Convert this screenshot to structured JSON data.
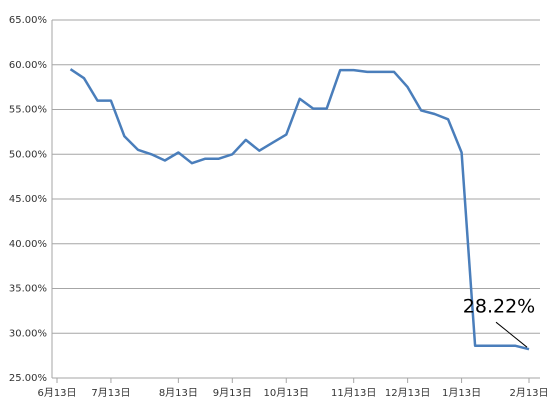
{
  "chart_data": {
    "type": "line",
    "categories": [
      "6月13日",
      null,
      null,
      null,
      "7月13日",
      null,
      null,
      null,
      null,
      "8月13日",
      null,
      null,
      null,
      "9月13日",
      null,
      null,
      null,
      "10月13日",
      null,
      null,
      null,
      null,
      "11月13日",
      null,
      null,
      null,
      "12月13日",
      null,
      null,
      null,
      "1月13日",
      null,
      null,
      null,
      null,
      "2月13日"
    ],
    "series": [
      {
        "color": "#4a7ebb",
        "values": [
          null,
          59.5,
          58.5,
          56.0,
          56.0,
          52.0,
          50.5,
          50.0,
          49.3,
          50.2,
          49.0,
          49.5,
          49.5,
          50.0,
          51.6,
          50.4,
          51.3,
          52.2,
          56.2,
          55.1,
          55.1,
          59.4,
          59.4,
          59.2,
          59.2,
          59.2,
          57.5,
          54.9,
          54.5,
          53.9,
          50.2,
          28.6,
          28.6,
          28.6,
          28.6,
          28.22
        ],
        "value_labels": [
          null,
          null,
          null,
          null,
          null,
          null,
          null,
          null,
          null,
          null,
          null,
          null,
          null,
          null,
          null,
          null,
          null,
          null,
          null,
          null,
          null,
          null,
          null,
          null,
          null,
          null,
          null,
          null,
          null,
          null,
          null,
          null,
          null,
          null,
          null,
          "28.22%"
        ]
      }
    ],
    "ylim": [
      25,
      65
    ],
    "yticks": [
      {
        "value": 25,
        "label": "25.00%"
      },
      {
        "value": 30,
        "label": "30.00%"
      },
      {
        "value": 35,
        "label": "35.00%"
      },
      {
        "value": 40,
        "label": "40.00%"
      },
      {
        "value": 45,
        "label": "45.00%"
      },
      {
        "value": 50,
        "label": "50.00%"
      },
      {
        "value": 55,
        "label": "55.00%"
      },
      {
        "value": 60,
        "label": "60.00%"
      },
      {
        "value": 65,
        "label": "65.00%"
      }
    ],
    "grid": true
  }
}
